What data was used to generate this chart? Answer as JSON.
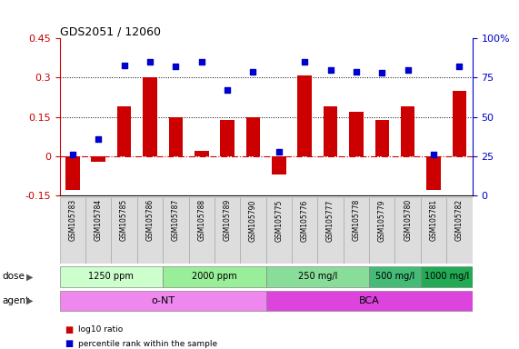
{
  "title": "GDS2051 / 12060",
  "samples": [
    "GSM105783",
    "GSM105784",
    "GSM105785",
    "GSM105786",
    "GSM105787",
    "GSM105788",
    "GSM105789",
    "GSM105790",
    "GSM105775",
    "GSM105776",
    "GSM105777",
    "GSM105778",
    "GSM105779",
    "GSM105780",
    "GSM105781",
    "GSM105782"
  ],
  "log10_ratio": [
    -0.13,
    -0.02,
    0.19,
    0.3,
    0.15,
    0.02,
    0.14,
    0.15,
    -0.07,
    0.31,
    0.19,
    0.17,
    0.14,
    0.19,
    -0.13,
    0.25
  ],
  "percentile": [
    26,
    36,
    83,
    85,
    82,
    85,
    67,
    79,
    28,
    85,
    80,
    79,
    78,
    80,
    26,
    82
  ],
  "bar_color": "#cc0000",
  "dot_color": "#0000cc",
  "zero_line_color": "#cc0000",
  "ylim_left": [
    -0.15,
    0.45
  ],
  "ylim_right": [
    0,
    100
  ],
  "yticks_left": [
    -0.15,
    0.0,
    0.15,
    0.3,
    0.45
  ],
  "yticks_right": [
    0,
    25,
    50,
    75,
    100
  ],
  "hlines": [
    0.15,
    0.3
  ],
  "dose_groups": [
    {
      "label": "1250 ppm",
      "start": 0,
      "end": 3,
      "color": "#ccffcc"
    },
    {
      "label": "2000 ppm",
      "start": 4,
      "end": 7,
      "color": "#99ee99"
    },
    {
      "label": "250 mg/l",
      "start": 8,
      "end": 11,
      "color": "#88dd99"
    },
    {
      "label": "500 mg/l",
      "start": 12,
      "end": 13,
      "color": "#44bb77"
    },
    {
      "label": "1000 mg/l",
      "start": 14,
      "end": 15,
      "color": "#22aa55"
    }
  ],
  "agent_groups": [
    {
      "label": "o-NT",
      "start": 0,
      "end": 7,
      "color": "#ee88ee"
    },
    {
      "label": "BCA",
      "start": 8,
      "end": 15,
      "color": "#dd44dd"
    }
  ],
  "legend_items": [
    {
      "color": "#cc0000",
      "label": "log10 ratio"
    },
    {
      "color": "#0000cc",
      "label": "percentile rank within the sample"
    }
  ],
  "label_dose": "dose",
  "label_agent": "agent",
  "cell_color": "#dddddd",
  "cell_edge_color": "#aaaaaa"
}
